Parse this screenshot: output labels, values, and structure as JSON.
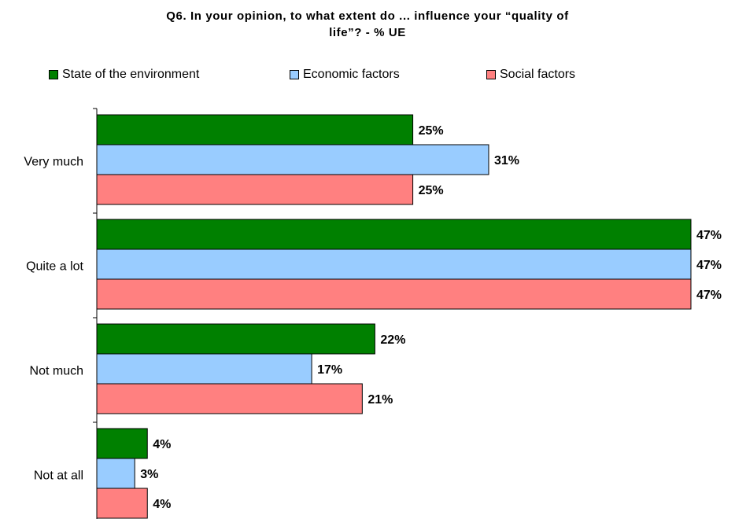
{
  "chart_data": {
    "type": "bar",
    "orientation": "horizontal",
    "title_lines": [
      "Q6. In your opinion, to what extent do ... influence your “quality of",
      "life”? - % UE"
    ],
    "categories": [
      "Very much",
      "Quite a lot",
      "Not much",
      "Not at all"
    ],
    "series": [
      {
        "name": "State of the environment",
        "color": "#008000",
        "values": [
          25,
          47,
          22,
          4
        ],
        "labels": [
          "25%",
          "47%",
          "22%",
          "4%"
        ]
      },
      {
        "name": "Economic factors",
        "color": "#99ccff",
        "values": [
          31,
          47,
          17,
          3
        ],
        "labels": [
          "31%",
          "47%",
          "17%",
          "3%"
        ]
      },
      {
        "name": "Social factors",
        "color": "#ff8080",
        "values": [
          25,
          47,
          21,
          4
        ],
        "labels": [
          "25%",
          "47%",
          "21%",
          "4%"
        ]
      }
    ],
    "xlim": [
      0,
      47
    ],
    "grid": false,
    "legend_position": "top"
  }
}
